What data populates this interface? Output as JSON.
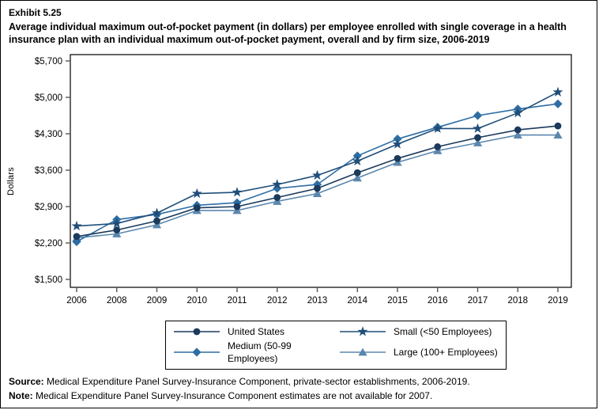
{
  "header": {
    "exhibit": "Exhibit 5.25",
    "title": "Average individual maximum out-of-pocket payment (in dollars) per employee enrolled with single coverage in a health insurance plan with an individual maximum out-of-pocket payment, overall and by firm size, 2006-2019"
  },
  "chart_data": {
    "type": "line",
    "title": "",
    "xlabel": "",
    "ylabel": "Dollars",
    "x_tick_labels": [
      "2006",
      "2008",
      "2009",
      "2010",
      "2011",
      "2012",
      "2013",
      "2014",
      "2015",
      "2016",
      "2017",
      "2018",
      "2019"
    ],
    "ylim": [
      1500,
      5700
    ],
    "yticks": [
      1500,
      2200,
      2900,
      3600,
      4300,
      5000,
      5700
    ],
    "ytick_labels": [
      "$1,500",
      "$2,200",
      "$2,900",
      "$3,600",
      "$4,300",
      "$5,000",
      "$5,700"
    ],
    "grid": false,
    "legend_position": "bottom",
    "series": [
      {
        "name": "United States",
        "marker": "circle",
        "color": "#1b3a5c",
        "values": [
          2325,
          2450,
          2625,
          2875,
          2900,
          3075,
          3250,
          3550,
          3825,
          4050,
          4225,
          4375,
          4450
        ]
      },
      {
        "name": "Small (<50 Employees)",
        "marker": "star",
        "color": "#1f4e79",
        "values": [
          2525,
          2575,
          2775,
          3150,
          3175,
          3325,
          3500,
          3775,
          4100,
          4400,
          4400,
          4700,
          5100
        ]
      },
      {
        "name": "Medium (50-99 Employees)",
        "marker": "diamond",
        "color": "#2e6da4",
        "values": [
          2225,
          2650,
          2750,
          2925,
          2975,
          3250,
          3325,
          3875,
          4200,
          4425,
          4650,
          4775,
          4875
        ]
      },
      {
        "name": "Large (100+ Employees)",
        "marker": "triangle",
        "color": "#5b87ad",
        "values": [
          2300,
          2375,
          2550,
          2825,
          2825,
          3000,
          3150,
          3450,
          3750,
          3975,
          4125,
          4275,
          4275
        ]
      }
    ],
    "note": "2007 not shown"
  },
  "legend": {
    "order": [
      "United States",
      "Small (<50 Employees)",
      "Medium (50-99 Employees)",
      "Large (100+ Employees)"
    ],
    "columns_order_rowwise": [
      "United States",
      "Small (<50 Employees)",
      "Medium (50-99 Employees)",
      "Large (100+ Employees)"
    ]
  },
  "footer": {
    "source_label": "Source:",
    "source_text": " Medical Expenditure Panel Survey-Insurance Component, private-sector establishments, 2006-2019.",
    "note_label": "Note:",
    "note_text": " Medical Expenditure Panel Survey-Insurance Component estimates are not available for 2007."
  }
}
